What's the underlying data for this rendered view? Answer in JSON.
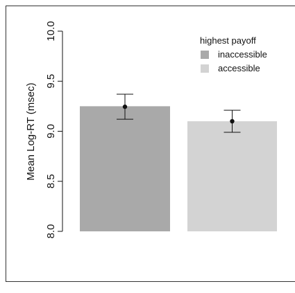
{
  "chart_data": {
    "type": "bar",
    "categories": [
      "inaccessible",
      "accessible"
    ],
    "values": [
      9.25,
      9.1
    ],
    "error_bars": [
      {
        "low": 9.12,
        "high": 9.37
      },
      {
        "low": 8.99,
        "high": 9.21
      }
    ],
    "point_estimates": [
      9.245,
      9.1
    ],
    "ylabel": "Mean Log-RT (msec)",
    "ylim": [
      8.0,
      10.0
    ],
    "yticks": [
      "8.0",
      "8.5",
      "9.0",
      "9.5",
      "10.0"
    ],
    "legend": {
      "title": "highest payoff",
      "placement": "top-right",
      "entries": [
        {
          "label": "inaccessible",
          "color": "#a9a9a9"
        },
        {
          "label": "accessible",
          "color": "#d3d3d3"
        }
      ]
    },
    "grid": false
  }
}
